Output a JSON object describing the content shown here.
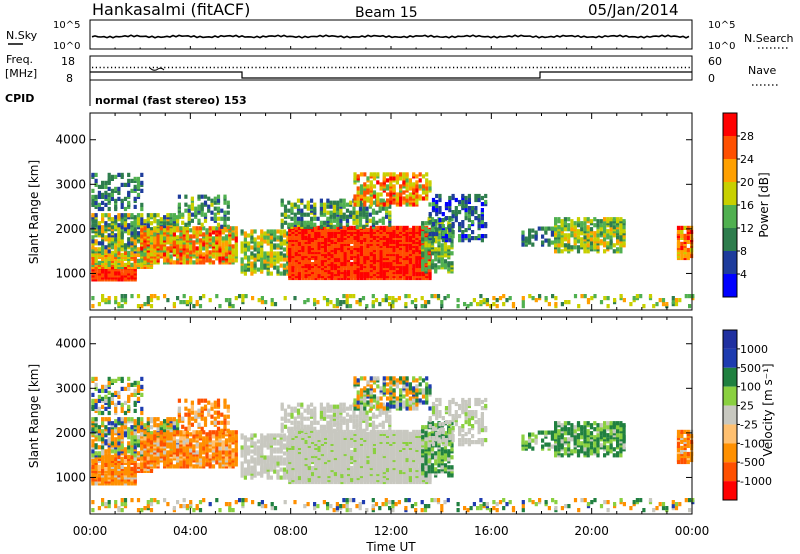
{
  "header": {
    "station": "Hankasalmi (fitACF)",
    "beam": "Beam 15",
    "date": "05/Jan/2014"
  },
  "noise_panel": {
    "left_label": "N.Sky",
    "left_ticks": [
      "10^5",
      "10^0"
    ],
    "right_label": "N.Search",
    "right_ticks": [
      "10^5",
      "10^0"
    ]
  },
  "freq_panel": {
    "left_label_1": "Freq.",
    "left_label_2": "[MHz]",
    "left_ticks": [
      "18",
      "8"
    ],
    "right_label": "Nave",
    "right_ticks": [
      "60",
      "0"
    ]
  },
  "cpid": {
    "label": "CPID",
    "text": "normal (fast stereo) 153"
  },
  "colors": {
    "power_scale": [
      "#0000ff",
      "#1e3c9c",
      "#2e7d4d",
      "#50b050",
      "#c8d000",
      "#ffa000",
      "#ff5000",
      "#ff0000"
    ],
    "velocity_scale": [
      "#ff0000",
      "#ff5000",
      "#ff9000",
      "#ffc070",
      "#c8c8c0",
      "#8ad040",
      "#208040",
      "#1e3cb0",
      "#2030a0"
    ]
  },
  "chart_data": [
    {
      "type": "heatmap",
      "name_label": "power",
      "xlabel": "Time UT",
      "ylabel": "Slant Range [km]",
      "x_ticks": [
        "00:00",
        "04:00",
        "08:00",
        "12:00",
        "16:00",
        "20:00",
        "00:00"
      ],
      "x_range_hours": [
        0,
        24
      ],
      "y_ticks": [
        1000,
        2000,
        3000,
        4000
      ],
      "y_range_km": [
        180,
        4600
      ],
      "colorbar_label": "Power [dB]",
      "colorbar_ticks": [
        "4",
        "8",
        "12",
        "16",
        "20",
        "24",
        "28"
      ],
      "colorbar_range": [
        0,
        32
      ]
    },
    {
      "type": "heatmap",
      "name_label": "velocity",
      "xlabel": "Time UT",
      "ylabel": "Slant Range [km]",
      "x_ticks": [
        "00:00",
        "04:00",
        "08:00",
        "12:00",
        "16:00",
        "20:00",
        "00:00"
      ],
      "x_range_hours": [
        0,
        24
      ],
      "y_ticks": [
        1000,
        2000,
        3000,
        4000
      ],
      "y_range_km": [
        180,
        4600
      ],
      "colorbar_label": "Velocity [m s⁻¹]",
      "colorbar_ticks": [
        "1000",
        "500",
        "100",
        "25",
        "-25",
        "-100",
        "-500",
        "-1000"
      ]
    }
  ]
}
